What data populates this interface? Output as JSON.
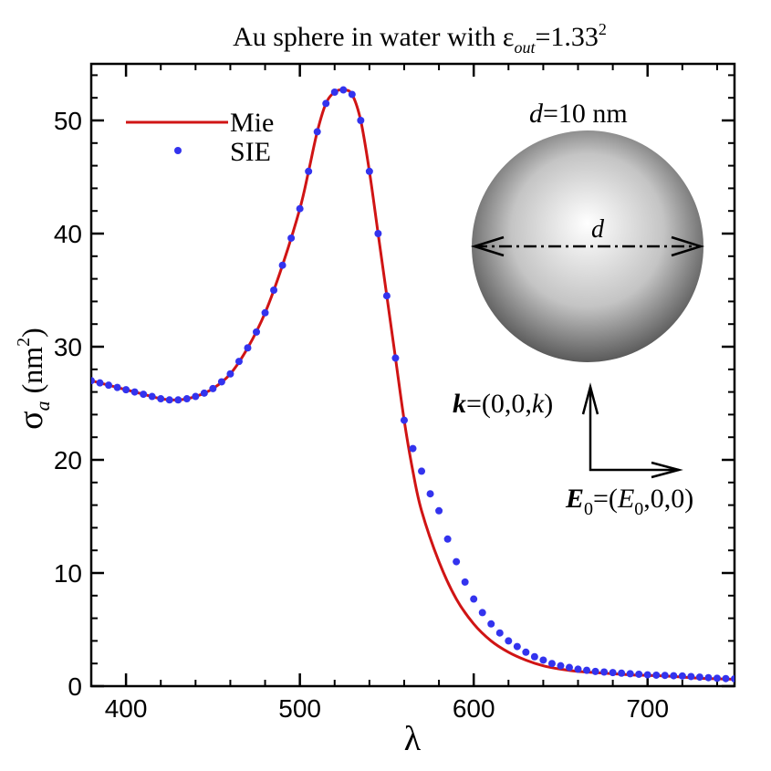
{
  "chart_data": {
    "type": "line",
    "title": {
      "prefix": "Au sphere in water with ",
      "epsilon": "ε",
      "subscript": "out",
      "equals": "=1.33",
      "superscript": "2"
    },
    "xlabel": "λ",
    "ylabel": {
      "sigma": "σ",
      "subscript": "a",
      "unit_open": " (nm",
      "unit_sup": "2",
      "unit_close": ")"
    },
    "xlim": [
      380,
      750
    ],
    "ylim": [
      0,
      55
    ],
    "x_ticks": [
      400,
      500,
      600,
      700
    ],
    "y_ticks": [
      0,
      10,
      20,
      30,
      40,
      50
    ],
    "x_tick_labels": [
      "400",
      "500",
      "600",
      "700"
    ],
    "y_tick_labels": [
      "0",
      "10",
      "20",
      "30",
      "40",
      "50"
    ],
    "legend": {
      "position": "top-left",
      "entries": [
        "Mie",
        "SIE"
      ]
    },
    "series": [
      {
        "name": "Mie",
        "style": "line",
        "color": "#d01414",
        "x": [
          380,
          390,
          400,
          410,
          420,
          430,
          440,
          450,
          460,
          470,
          480,
          490,
          500,
          505,
          510,
          515,
          520,
          525,
          530,
          535,
          540,
          545,
          550,
          555,
          560,
          565,
          570,
          580,
          590,
          600,
          610,
          620,
          630,
          640,
          650,
          660,
          670,
          680,
          690,
          700,
          710,
          720,
          730,
          740,
          750
        ],
        "values": [
          27.0,
          26.6,
          26.2,
          25.8,
          25.4,
          25.3,
          25.6,
          26.3,
          27.6,
          29.9,
          33.0,
          37.2,
          42.2,
          45.5,
          49.0,
          51.5,
          52.5,
          52.7,
          52.3,
          50.0,
          45.5,
          40.0,
          34.5,
          29.0,
          23.5,
          19.0,
          15.5,
          11.0,
          7.7,
          5.5,
          4.0,
          3.0,
          2.3,
          1.8,
          1.5,
          1.3,
          1.2,
          1.1,
          1.0,
          0.95,
          0.9,
          0.8,
          0.7,
          0.65,
          0.6
        ]
      },
      {
        "name": "SIE",
        "style": "markers",
        "color": "#3333ee",
        "x": [
          380,
          385,
          390,
          395,
          400,
          405,
          410,
          415,
          420,
          425,
          430,
          435,
          440,
          445,
          450,
          455,
          460,
          465,
          470,
          475,
          480,
          485,
          490,
          495,
          500,
          505,
          510,
          515,
          520,
          525,
          530,
          535,
          540,
          545,
          550,
          555,
          560,
          565,
          570,
          575,
          580,
          585,
          590,
          595,
          600,
          605,
          610,
          615,
          620,
          625,
          630,
          635,
          640,
          645,
          650,
          655,
          660,
          665,
          670,
          675,
          680,
          685,
          690,
          695,
          700,
          705,
          710,
          715,
          720,
          725,
          730,
          735,
          740,
          745,
          750
        ],
        "values": [
          27.0,
          26.8,
          26.6,
          26.4,
          26.2,
          26.0,
          25.8,
          25.6,
          25.4,
          25.3,
          25.3,
          25.4,
          25.6,
          25.9,
          26.3,
          26.9,
          27.6,
          28.7,
          29.9,
          31.3,
          33.0,
          35.0,
          37.2,
          39.6,
          42.2,
          45.5,
          49.0,
          51.5,
          52.5,
          52.7,
          52.3,
          50.0,
          45.5,
          40.0,
          34.5,
          29.0,
          23.5,
          21.0,
          19.0,
          17.0,
          15.5,
          13.0,
          11.0,
          9.2,
          7.7,
          6.5,
          5.5,
          4.7,
          4.0,
          3.5,
          3.0,
          2.6,
          2.3,
          2.0,
          1.8,
          1.65,
          1.5,
          1.4,
          1.3,
          1.25,
          1.2,
          1.15,
          1.1,
          1.05,
          1.0,
          0.97,
          0.95,
          0.92,
          0.9,
          0.85,
          0.8,
          0.75,
          0.7,
          0.67,
          0.65
        ]
      }
    ]
  },
  "inset": {
    "diameter_label": "d=10 nm",
    "diameter_var": "d",
    "diameter_value": "=10 nm",
    "d_label": "d",
    "k_label": {
      "bold": "k",
      "rest_pre": "=(0,0,",
      "italic": "k",
      "rest_post": ")"
    },
    "e_label": {
      "bold": "E",
      "sub": "0",
      "rest_pre": "=(",
      "italic": "E",
      "sub2": "0",
      "rest_post": ",0,0)"
    },
    "sphere_color_center": "#ffffff",
    "sphere_color_edge": "#5a5a5a"
  }
}
